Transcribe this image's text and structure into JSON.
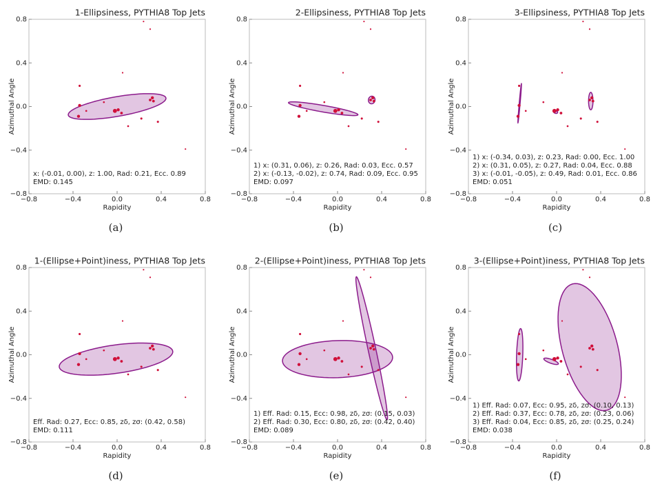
{
  "chart_data": [
    {
      "type": "scatter",
      "title": "1-Ellipsiness, PYTHIA8 Top Jets",
      "xlabel": "Rapidity",
      "ylabel": "Azimuthal Angle",
      "caption": "(a)",
      "annotations": [
        "x: (-0.01, 0.00), z: 1.00, Rad: 0.21, Ecc. 0.89",
        "EMD: 0.145"
      ],
      "xlim": [
        -0.8,
        0.8
      ],
      "ylim": [
        -0.8,
        0.8
      ],
      "xticks": [
        {
          "value": -0.8,
          "label": "−0.8"
        },
        {
          "value": -0.4,
          "label": "−0.4"
        },
        {
          "value": 0,
          "label": "0.0"
        },
        0.4,
        0.8
      ],
      "yticks": [
        {
          "value": -0.8,
          "label": "−0.8"
        },
        {
          "value": -0.4,
          "label": "−0.4"
        },
        {
          "value": 0,
          "label": "0.0"
        },
        0.4,
        0.8
      ],
      "x": [
        -0.34,
        -0.34,
        -0.35,
        -0.02,
        0.01,
        0.04,
        0.3,
        0.32,
        0.33,
        0.22,
        0.37,
        -0.12,
        0.05,
        0.3,
        0.24,
        0.62,
        -0.28,
        0.1
      ],
      "y": [
        0.19,
        0.01,
        -0.09,
        -0.04,
        -0.03,
        -0.06,
        0.06,
        0.08,
        0.05,
        -0.11,
        -0.14,
        0.04,
        0.31,
        0.71,
        0.78,
        -0.39,
        -0.04,
        -0.18
      ],
      "sizes": [
        2,
        4,
        4,
        7,
        4,
        3,
        3,
        4,
        3,
        2,
        2,
        1.5,
        1,
        1,
        1,
        1,
        1.5,
        1.5
      ],
      "color": "#d0103a",
      "ellipse_color": "#8b1a8b",
      "ellipses": [
        {
          "cx": 0.0,
          "cy": 0.0,
          "rx": 0.45,
          "ry": 0.09,
          "angle": 10
        }
      ]
    },
    {
      "type": "scatter",
      "title": "2-Ellipsiness, PYTHIA8 Top Jets",
      "xlabel": "Rapidity",
      "ylabel": "Azimuthal Angle",
      "caption": "(b)",
      "annotations": [
        "1) x: (0.31, 0.06), z: 0.26, Rad: 0.03, Ecc. 0.57",
        "2) x: (-0.13, -0.02), z: 0.74, Rad: 0.09, Ecc. 0.95",
        "EMD: 0.097"
      ],
      "xlim": [
        -0.8,
        0.8
      ],
      "ylim": [
        -0.8,
        0.8
      ],
      "xticks": [
        {
          "value": -0.8,
          "label": "−0.8"
        },
        {
          "value": -0.4,
          "label": "−0.4"
        },
        {
          "value": 0,
          "label": "0.0"
        },
        0.4,
        0.8
      ],
      "yticks": [
        {
          "value": -0.8,
          "label": "−0.8"
        },
        {
          "value": -0.4,
          "label": "−0.4"
        },
        {
          "value": 0,
          "label": "0.0"
        },
        0.4,
        0.8
      ],
      "x": [
        -0.34,
        -0.34,
        -0.35,
        -0.02,
        0.01,
        0.04,
        0.3,
        0.32,
        0.33,
        0.22,
        0.37,
        -0.12,
        0.05,
        0.3,
        0.24,
        0.62,
        -0.28,
        0.1
      ],
      "y": [
        0.19,
        0.01,
        -0.09,
        -0.04,
        -0.03,
        -0.06,
        0.06,
        0.08,
        0.05,
        -0.11,
        -0.14,
        0.04,
        0.31,
        0.71,
        0.78,
        -0.39,
        -0.04,
        -0.18
      ],
      "sizes": [
        2,
        4,
        4,
        7,
        4,
        3,
        3,
        4,
        3,
        2,
        2,
        1.5,
        1,
        1,
        1,
        1,
        1.5,
        1.5
      ],
      "color": "#d0103a",
      "ellipse_color": "#8b1a8b",
      "ellipses": [
        {
          "cx": 0.31,
          "cy": 0.06,
          "rx": 0.035,
          "ry": 0.03,
          "angle": 80
        },
        {
          "cx": -0.13,
          "cy": -0.02,
          "rx": 0.32,
          "ry": 0.03,
          "angle": -10
        }
      ]
    },
    {
      "type": "scatter",
      "title": "3-Ellipsiness, PYTHIA8 Top Jets",
      "xlabel": "Rapidity",
      "ylabel": "Azimuthal Angle",
      "caption": "(c)",
      "annotations": [
        "1) x: (-0.34, 0.03), z: 0.23, Rad: 0.00, Ecc. 1.00",
        "2) x: (0.31, 0.05), z: 0.27, Rad: 0.04, Ecc. 0.88",
        "3) x: (-0.01, -0.05), z: 0.49, Rad: 0.01, Ecc. 0.86",
        "EMD: 0.051"
      ],
      "xlim": [
        -0.8,
        0.8
      ],
      "ylim": [
        -0.8,
        0.8
      ],
      "xticks": [
        {
          "value": -0.8,
          "label": "−0.8"
        },
        {
          "value": -0.4,
          "label": "−0.4"
        },
        {
          "value": 0,
          "label": "0.0"
        },
        0.4,
        0.8
      ],
      "yticks": [
        {
          "value": -0.8,
          "label": "−0.8"
        },
        {
          "value": -0.4,
          "label": "−0.4"
        },
        {
          "value": 0,
          "label": "0.0"
        },
        0.4,
        0.8
      ],
      "x": [
        -0.34,
        -0.34,
        -0.35,
        -0.02,
        0.01,
        0.04,
        0.3,
        0.32,
        0.33,
        0.22,
        0.37,
        -0.12,
        0.05,
        0.3,
        0.24,
        0.62,
        -0.28,
        0.1
      ],
      "y": [
        0.19,
        0.01,
        -0.09,
        -0.04,
        -0.03,
        -0.06,
        0.06,
        0.08,
        0.05,
        -0.11,
        -0.14,
        0.04,
        0.31,
        0.71,
        0.78,
        -0.39,
        -0.04,
        -0.18
      ],
      "sizes": [
        2,
        4,
        4,
        7,
        4,
        3,
        3,
        4,
        3,
        2,
        2,
        1.5,
        1,
        1,
        1,
        1,
        1.5,
        1.5
      ],
      "color": "#d0103a",
      "ellipse_color": "#8b1a8b",
      "ellipses": [
        {
          "cx": -0.335,
          "cy": 0.03,
          "rx": 0.18,
          "ry": 0.004,
          "angle": 85
        },
        {
          "cx": 0.31,
          "cy": 0.05,
          "rx": 0.08,
          "ry": 0.02,
          "angle": 90
        },
        {
          "cx": -0.01,
          "cy": -0.05,
          "rx": 0.02,
          "ry": 0.012,
          "angle": -20
        }
      ]
    },
    {
      "type": "scatter",
      "title": "1-(Ellipse+Point)iness, PYTHIA8 Top Jets",
      "xlabel": "Rapidity",
      "ylabel": "Azimuthal Angle",
      "caption": "(d)",
      "annotations": [
        "Eff. Rad: 0.27, Ecc: 0.85, zδ, zσ: (0.42, 0.58)",
        "EMD: 0.111"
      ],
      "xlim": [
        -0.8,
        0.8
      ],
      "ylim": [
        -0.8,
        0.8
      ],
      "xticks": [
        {
          "value": -0.8,
          "label": "−0.8"
        },
        {
          "value": -0.4,
          "label": "−0.4"
        },
        {
          "value": 0,
          "label": "0.0"
        },
        0.4,
        0.8
      ],
      "yticks": [
        {
          "value": -0.8,
          "label": "−0.8"
        },
        {
          "value": -0.4,
          "label": "−0.4"
        },
        {
          "value": 0,
          "label": "0.0"
        },
        0.4,
        0.8
      ],
      "x": [
        -0.34,
        -0.34,
        -0.35,
        -0.02,
        0.01,
        0.04,
        0.3,
        0.32,
        0.33,
        0.22,
        0.37,
        -0.12,
        0.05,
        0.3,
        0.24,
        0.62,
        -0.28,
        0.1
      ],
      "y": [
        0.19,
        0.01,
        -0.09,
        -0.04,
        -0.03,
        -0.06,
        0.06,
        0.08,
        0.05,
        -0.11,
        -0.14,
        0.04,
        0.31,
        0.71,
        0.78,
        -0.39,
        -0.04,
        -0.18
      ],
      "sizes": [
        2,
        4,
        4,
        7,
        4,
        3,
        3,
        4,
        3,
        2,
        2,
        1.5,
        1,
        1,
        1,
        1,
        1.5,
        1.5
      ],
      "color": "#d0103a",
      "ellipse_color": "#8b1a8b",
      "ellipses": [
        {
          "cx": -0.01,
          "cy": -0.04,
          "rx": 0.52,
          "ry": 0.13,
          "angle": 8
        }
      ]
    },
    {
      "type": "scatter",
      "title": "2-(Ellipse+Point)iness, PYTHIA8 Top Jets",
      "xlabel": "Rapidity",
      "ylabel": "Azimuthal Angle",
      "caption": "(e)",
      "annotations": [
        "1) Eff. Rad: 0.15, Ecc: 0.98, zδ, zσ: (0.15, 0.03)",
        "2) Eff. Rad: 0.30, Ecc: 0.80, zδ, zσ: (0.42, 0.40)",
        "EMD: 0.089"
      ],
      "xlim": [
        -0.8,
        0.8
      ],
      "ylim": [
        -0.8,
        0.8
      ],
      "xticks": [
        {
          "value": -0.8,
          "label": "−0.8"
        },
        {
          "value": -0.4,
          "label": "−0.4"
        },
        {
          "value": 0,
          "label": "0.0"
        },
        0.4,
        0.8
      ],
      "yticks": [
        {
          "value": -0.8,
          "label": "−0.8"
        },
        {
          "value": -0.4,
          "label": "−0.4"
        },
        {
          "value": 0,
          "label": "0.0"
        },
        0.4,
        0.8
      ],
      "x": [
        -0.34,
        -0.34,
        -0.35,
        -0.02,
        0.01,
        0.04,
        0.3,
        0.32,
        0.33,
        0.22,
        0.37,
        -0.12,
        0.05,
        0.3,
        0.24,
        0.62,
        -0.28,
        0.1
      ],
      "y": [
        0.19,
        0.01,
        -0.09,
        -0.04,
        -0.03,
        -0.06,
        0.06,
        0.08,
        0.05,
        -0.11,
        -0.14,
        0.04,
        0.31,
        0.71,
        0.78,
        -0.39,
        -0.04,
        -0.18
      ],
      "sizes": [
        2,
        4,
        4,
        7,
        4,
        3,
        3,
        4,
        3,
        2,
        2,
        1.5,
        1,
        1,
        1,
        1,
        1.5,
        1.5
      ],
      "color": "#d0103a",
      "ellipse_color": "#8b1a8b",
      "ellipses": [
        {
          "cx": 0.31,
          "cy": 0.06,
          "rx": 0.67,
          "ry": 0.035,
          "angle": -78
        },
        {
          "cx": 0.0,
          "cy": -0.04,
          "rx": 0.5,
          "ry": 0.17,
          "angle": 2
        }
      ]
    },
    {
      "type": "scatter",
      "title": "3-(Ellipse+Point)iness, PYTHIA8 Top Jets",
      "xlabel": "Rapidity",
      "ylabel": "Azimuthal Angle",
      "caption": "(f)",
      "annotations": [
        "1) Eff. Rad: 0.07, Ecc: 0.95, zδ, zσ: (0.10, 0.13)",
        "2) Eff. Rad: 0.37, Ecc: 0.78, zδ, zσ: (0.23, 0.06)",
        "3) Eff. Rad: 0.04, Ecc: 0.85, zδ, zσ: (0.25, 0.24)",
        "EMD: 0.038"
      ],
      "xlim": [
        -0.8,
        0.8
      ],
      "ylim": [
        -0.8,
        0.8
      ],
      "xticks": [
        {
          "value": -0.8,
          "label": "−0.8"
        },
        {
          "value": -0.4,
          "label": "−0.4"
        },
        {
          "value": 0,
          "label": "0.0"
        },
        0.4,
        0.8
      ],
      "yticks": [
        {
          "value": -0.8,
          "label": "−0.8"
        },
        {
          "value": -0.4,
          "label": "−0.4"
        },
        {
          "value": 0,
          "label": "0.0"
        },
        0.4,
        0.8
      ],
      "x": [
        -0.34,
        -0.34,
        -0.35,
        -0.02,
        0.01,
        0.04,
        0.3,
        0.32,
        0.33,
        0.22,
        0.37,
        -0.12,
        0.05,
        0.3,
        0.24,
        0.62,
        -0.28,
        0.1
      ],
      "y": [
        0.19,
        0.01,
        -0.09,
        -0.04,
        -0.03,
        -0.06,
        0.06,
        0.08,
        0.05,
        -0.11,
        -0.14,
        0.04,
        0.31,
        0.71,
        0.78,
        -0.39,
        -0.04,
        -0.18
      ],
      "sizes": [
        2,
        4,
        4,
        7,
        4,
        3,
        3,
        4,
        3,
        2,
        2,
        1.5,
        1,
        1,
        1,
        1,
        1.5,
        1.5
      ],
      "color": "#d0103a",
      "ellipse_color": "#8b1a8b",
      "ellipses": [
        {
          "cx": -0.335,
          "cy": 0.0,
          "rx": 0.24,
          "ry": 0.028,
          "angle": 88
        },
        {
          "cx": 0.3,
          "cy": 0.07,
          "rx": 0.6,
          "ry": 0.25,
          "angle": -75
        },
        {
          "cx": -0.05,
          "cy": -0.06,
          "rx": 0.07,
          "ry": 0.018,
          "angle": -20
        }
      ]
    }
  ]
}
